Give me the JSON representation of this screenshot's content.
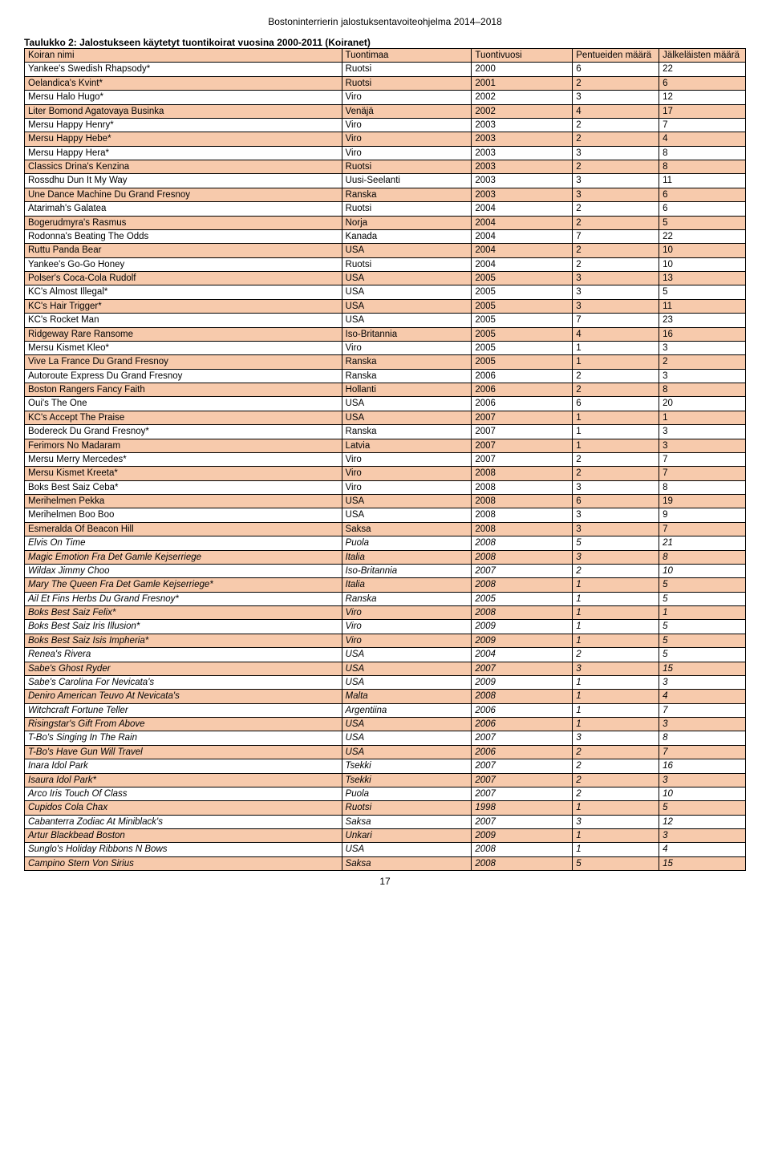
{
  "doc_header": "Bostoninterrierin jalostuksentavoiteohjelma 2014–2018",
  "table_title": "Taulukko 2: Jalostukseen käytetyt tuontikoirat vuosina 2000-2011 (Koiranet)",
  "page_number": "17",
  "columns": [
    "Koiran nimi",
    "Tuontimaa",
    "Tuontivuosi",
    "Pentueiden määrä",
    "Jälkeläisten määrä"
  ],
  "rows": [
    {
      "c": [
        "Yankee's Swedish Rhapsody*",
        "Ruotsi",
        "2000",
        "6",
        "22"
      ],
      "shaded": false,
      "italic": false
    },
    {
      "c": [
        "Oelandica's Kvint*",
        "Ruotsi",
        "2001",
        "2",
        "6"
      ],
      "shaded": true,
      "italic": false
    },
    {
      "c": [
        "Mersu Halo Hugo*",
        "Viro",
        "2002",
        "3",
        "12"
      ],
      "shaded": false,
      "italic": false
    },
    {
      "c": [
        "Liter Bomond Agatovaya Businka",
        "Venäjä",
        "2002",
        "4",
        "17"
      ],
      "shaded": true,
      "italic": false
    },
    {
      "c": [
        "Mersu Happy Henry*",
        "Viro",
        "2003",
        "2",
        "7"
      ],
      "shaded": false,
      "italic": false
    },
    {
      "c": [
        "Mersu Happy Hebe*",
        "Viro",
        "2003",
        "2",
        "4"
      ],
      "shaded": true,
      "italic": false
    },
    {
      "c": [
        "Mersu Happy Hera*",
        "Viro",
        "2003",
        "3",
        "8"
      ],
      "shaded": false,
      "italic": false
    },
    {
      "c": [
        "Classics Drina's Kenzina",
        "Ruotsi",
        "2003",
        "2",
        "8"
      ],
      "shaded": true,
      "italic": false
    },
    {
      "c": [
        "Rossdhu Dun It My Way",
        "Uusi-Seelanti",
        "2003",
        "3",
        "11"
      ],
      "shaded": false,
      "italic": false
    },
    {
      "c": [
        "Une Dance Machine Du Grand Fresnoy",
        "Ranska",
        "2003",
        "3",
        "6"
      ],
      "shaded": true,
      "italic": false
    },
    {
      "c": [
        "Atarimah's Galatea",
        "Ruotsi",
        "2004",
        "2",
        "6"
      ],
      "shaded": false,
      "italic": false
    },
    {
      "c": [
        "Bogerudmyra's Rasmus",
        "Norja",
        "2004",
        "2",
        "5"
      ],
      "shaded": true,
      "italic": false
    },
    {
      "c": [
        "Rodonna's Beating The Odds",
        "Kanada",
        "2004",
        "7",
        "22"
      ],
      "shaded": false,
      "italic": false
    },
    {
      "c": [
        "Ruttu Panda Bear",
        "USA",
        "2004",
        "2",
        "10"
      ],
      "shaded": true,
      "italic": false
    },
    {
      "c": [
        "Yankee's Go-Go Honey",
        "Ruotsi",
        "2004",
        "2",
        "10"
      ],
      "shaded": false,
      "italic": false
    },
    {
      "c": [
        "Polser's Coca-Cola Rudolf",
        "USA",
        "2005",
        "3",
        "13"
      ],
      "shaded": true,
      "italic": false
    },
    {
      "c": [
        "KC's Almost Illegal*",
        "USA",
        "2005",
        "3",
        "5"
      ],
      "shaded": false,
      "italic": false
    },
    {
      "c": [
        "KC's Hair Trigger*",
        "USA",
        "2005",
        "3",
        "11"
      ],
      "shaded": true,
      "italic": false
    },
    {
      "c": [
        "KC's Rocket Man",
        "USA",
        "2005",
        "7",
        "23"
      ],
      "shaded": false,
      "italic": false
    },
    {
      "c": [
        "Ridgeway Rare Ransome",
        "Iso-Britannia",
        "2005",
        "4",
        "16"
      ],
      "shaded": true,
      "italic": false
    },
    {
      "c": [
        "Mersu Kismet Kleo*",
        "Viro",
        "2005",
        "1",
        "3"
      ],
      "shaded": false,
      "italic": false
    },
    {
      "c": [
        "Vive La France Du Grand Fresnoy",
        "Ranska",
        "2005",
        "1",
        "2"
      ],
      "shaded": true,
      "italic": false
    },
    {
      "c": [
        "Autoroute Express Du Grand Fresnoy",
        "Ranska",
        "2006",
        "2",
        "3"
      ],
      "shaded": false,
      "italic": false
    },
    {
      "c": [
        "Boston Rangers Fancy Faith",
        "Hollanti",
        "2006",
        "2",
        "8"
      ],
      "shaded": true,
      "italic": false
    },
    {
      "c": [
        "Oui's The One",
        "USA",
        "2006",
        "6",
        "20"
      ],
      "shaded": false,
      "italic": false
    },
    {
      "c": [
        "KC's Accept The Praise",
        "USA",
        "2007",
        "1",
        "1"
      ],
      "shaded": true,
      "italic": false
    },
    {
      "c": [
        "Bodereck Du Grand Fresnoy*",
        "Ranska",
        "2007",
        "1",
        "3"
      ],
      "shaded": false,
      "italic": false
    },
    {
      "c": [
        "Ferimors No Madaram",
        "Latvia",
        "2007",
        "1",
        "3"
      ],
      "shaded": true,
      "italic": false
    },
    {
      "c": [
        "Mersu Merry Mercedes*",
        "Viro",
        "2007",
        "2",
        "7"
      ],
      "shaded": false,
      "italic": false
    },
    {
      "c": [
        "Mersu Kismet Kreeta*",
        "Viro",
        "2008",
        "2",
        "7"
      ],
      "shaded": true,
      "italic": false
    },
    {
      "c": [
        "Boks Best Saiz Ceba*",
        "Viro",
        "2008",
        "3",
        "8"
      ],
      "shaded": false,
      "italic": false
    },
    {
      "c": [
        "Merihelmen Pekka",
        "USA",
        "2008",
        "6",
        "19"
      ],
      "shaded": true,
      "italic": false
    },
    {
      "c": [
        "Merihelmen Boo Boo",
        "USA",
        "2008",
        "3",
        "9"
      ],
      "shaded": false,
      "italic": false
    },
    {
      "c": [
        "Esmeralda Of Beacon Hill",
        "Saksa",
        "2008",
        "3",
        "7"
      ],
      "shaded": true,
      "italic": false
    },
    {
      "c": [
        "Elvis On Time",
        "Puola",
        "2008",
        "5",
        "21"
      ],
      "shaded": false,
      "italic": true
    },
    {
      "c": [
        "Magic Emotion Fra Det Gamle Kejserriege",
        "Italia",
        "2008",
        "3",
        "8"
      ],
      "shaded": true,
      "italic": true
    },
    {
      "c": [
        "Wildax Jimmy Choo",
        "Iso-Britannia",
        "2007",
        "2",
        "10"
      ],
      "shaded": false,
      "italic": true
    },
    {
      "c": [
        "Mary The Queen Fra Det Gamle Kejserriege*",
        "Italia",
        "2008",
        "1",
        "5"
      ],
      "shaded": true,
      "italic": true
    },
    {
      "c": [
        "Ail Et Fins Herbs Du Grand Fresnoy*",
        "Ranska",
        "2005",
        "1",
        "5"
      ],
      "shaded": false,
      "italic": true
    },
    {
      "c": [
        "Boks Best Saiz Felix*",
        "Viro",
        "2008",
        "1",
        "1"
      ],
      "shaded": true,
      "italic": true
    },
    {
      "c": [
        "Boks Best Saiz Iris Illusion*",
        "Viro",
        "2009",
        "1",
        "5"
      ],
      "shaded": false,
      "italic": true
    },
    {
      "c": [
        "Boks Best Saiz Isis Impheria*",
        "Viro",
        "2009",
        "1",
        "5"
      ],
      "shaded": true,
      "italic": true
    },
    {
      "c": [
        "Renea's Rivera",
        "USA",
        "2004",
        "2",
        "5"
      ],
      "shaded": false,
      "italic": true
    },
    {
      "c": [
        "Sabe's Ghost Ryder",
        "USA",
        "2007",
        "3",
        "15"
      ],
      "shaded": true,
      "italic": true
    },
    {
      "c": [
        "Sabe's Carolina For Nevicata's",
        "USA",
        "2009",
        "1",
        "3"
      ],
      "shaded": false,
      "italic": true
    },
    {
      "c": [
        "Deniro American Teuvo At Nevicata's",
        "Malta",
        "2008",
        "1",
        "4"
      ],
      "shaded": true,
      "italic": true
    },
    {
      "c": [
        "Witchcraft Fortune Teller",
        "Argentiina",
        "2006",
        "1",
        "7"
      ],
      "shaded": false,
      "italic": true
    },
    {
      "c": [
        "Risingstar's Gift From Above",
        "USA",
        "2006",
        "1",
        "3"
      ],
      "shaded": true,
      "italic": true
    },
    {
      "c": [
        "T-Bo's Singing In The Rain",
        "USA",
        "2007",
        "3",
        "8"
      ],
      "shaded": false,
      "italic": true
    },
    {
      "c": [
        "T-Bo's Have Gun Will Travel",
        "USA",
        "2006",
        "2",
        "7"
      ],
      "shaded": true,
      "italic": true
    },
    {
      "c": [
        "Inara Idol Park",
        "Tsekki",
        "2007",
        "2",
        "16"
      ],
      "shaded": false,
      "italic": true
    },
    {
      "c": [
        "Isaura Idol Park*",
        "Tsekki",
        "2007",
        "2",
        "3"
      ],
      "shaded": true,
      "italic": true
    },
    {
      "c": [
        "Arco Iris Touch Of Class",
        "Puola",
        "2007",
        "2",
        "10"
      ],
      "shaded": false,
      "italic": true
    },
    {
      "c": [
        "Cupidos Cola Chax",
        "Ruotsi",
        "1998",
        "1",
        "5"
      ],
      "shaded": true,
      "italic": true
    },
    {
      "c": [
        "Cabanterra Zodiac At Miniblack's",
        "Saksa",
        "2007",
        "3",
        "12"
      ],
      "shaded": false,
      "italic": true
    },
    {
      "c": [
        "Artur Blackbead Boston",
        "Unkari",
        "2009",
        "1",
        "3"
      ],
      "shaded": true,
      "italic": true
    },
    {
      "c": [
        "Sunglo's Holiday Ribbons N Bows",
        "USA",
        "2008",
        "1",
        "4"
      ],
      "shaded": false,
      "italic": true
    },
    {
      "c": [
        "Campino Stern Von Sirius",
        "Saksa",
        "2008",
        "5",
        "15"
      ],
      "shaded": true,
      "italic": true
    }
  ]
}
